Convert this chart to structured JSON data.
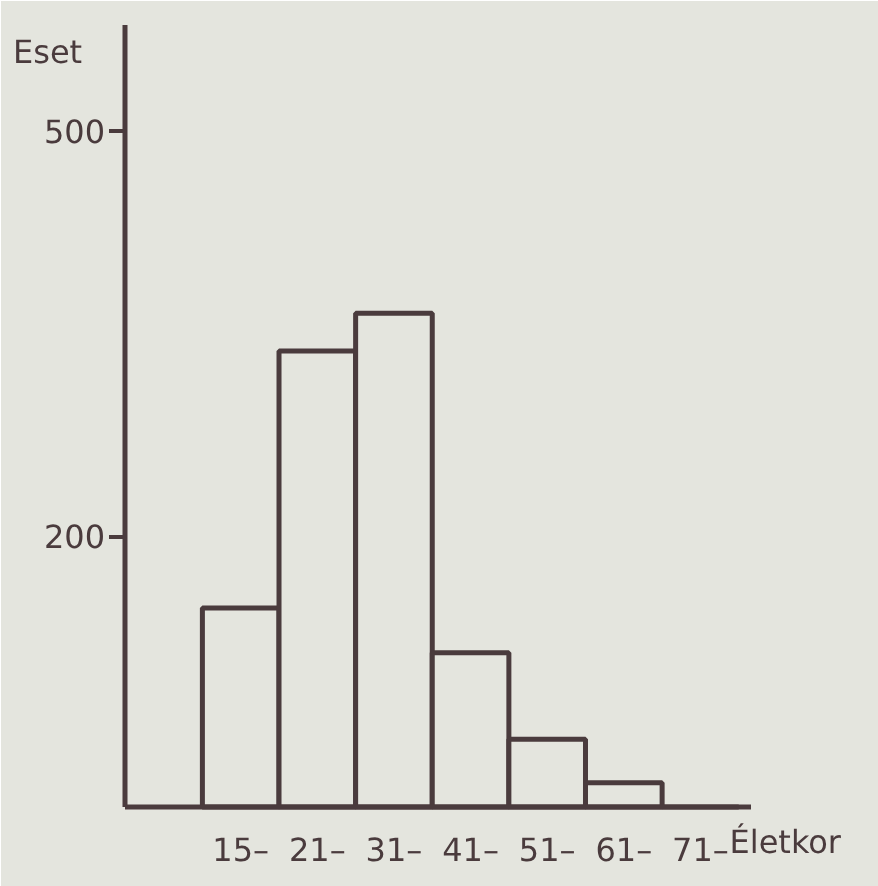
{
  "chart_data": {
    "type": "bar",
    "xlabel": "Életkor",
    "ylabel": "Eset",
    "categories": [
      "15–",
      "21–",
      "31–",
      "41–",
      "51–",
      "61–",
      "71–"
    ],
    "values": [
      147,
      337,
      365,
      114,
      50,
      18,
      0
    ],
    "color": "#e4e5de",
    "ylim": [
      0,
      578
    ],
    "yticks": [
      200,
      500
    ],
    "grid": false
  }
}
